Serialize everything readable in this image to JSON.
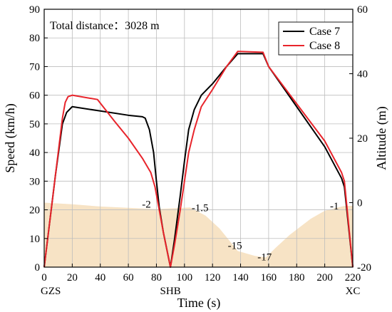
{
  "chart_data": {
    "type": "line",
    "title": "",
    "annotation_text": "Total distance：3028 m",
    "xlabel": "Time (s)",
    "ylabel_left": "Speed (km/h)",
    "ylabel_right": "Altitude (m)",
    "xlim": [
      0,
      220
    ],
    "ylim_left": [
      0,
      90
    ],
    "ylim_right": [
      -20,
      60
    ],
    "x_ticks": [
      0,
      20,
      40,
      60,
      80,
      100,
      120,
      140,
      160,
      180,
      200,
      220
    ],
    "y_ticks_left": [
      0,
      10,
      20,
      30,
      40,
      50,
      60,
      70,
      80,
      90
    ],
    "y_ticks_right": [
      -20,
      0,
      20,
      40,
      60
    ],
    "grid": true,
    "legend_position": "top-right",
    "stations": [
      {
        "label": "GZS",
        "x": 0
      },
      {
        "label": "SHB",
        "x": 90
      },
      {
        "label": "XC",
        "x": 220
      }
    ],
    "series": [
      {
        "name": "Case 7",
        "color": "#000000",
        "axis": "left",
        "x": [
          0,
          8,
          13,
          16,
          20,
          40,
          60,
          70,
          72,
          75,
          78,
          80,
          82,
          85,
          90,
          93,
          97,
          100,
          103,
          107,
          112,
          120,
          130,
          138,
          156,
          160,
          180,
          200,
          212,
          214,
          220
        ],
        "y": [
          0,
          32,
          50,
          54,
          56,
          54.5,
          53,
          52.5,
          52,
          48,
          40,
          30,
          21,
          12,
          0,
          10,
          25,
          37,
          48,
          55,
          60,
          64,
          70,
          74.5,
          74.5,
          70,
          56,
          42,
          31,
          28,
          0
        ]
      },
      {
        "name": "Case 8",
        "color": "#e8242b",
        "axis": "left",
        "x": [
          0,
          8,
          13,
          15,
          17,
          20,
          38,
          50,
          60,
          70,
          76,
          79,
          82,
          85,
          90,
          93,
          97,
          100,
          103,
          107,
          112,
          120,
          130,
          138,
          156,
          160,
          180,
          200,
          212,
          214,
          220
        ],
        "y": [
          0,
          32,
          52,
          57.5,
          59.5,
          60,
          58.5,
          51,
          45,
          38,
          33,
          28,
          20,
          12,
          0,
          8,
          20,
          30,
          40,
          48,
          56,
          62,
          70,
          75.3,
          75,
          70,
          57,
          44,
          33,
          30,
          0
        ]
      },
      {
        "name": "Altitude profile",
        "color": "#f7e3c5",
        "axis": "right",
        "type": "area",
        "x": [
          0,
          20,
          40,
          60,
          79,
          90,
          104,
          115,
          125,
          138,
          150,
          158,
          165,
          175,
          190,
          200,
          214,
          220
        ],
        "y": [
          0,
          -0.5,
          -1.2,
          -1.6,
          -2,
          -1.8,
          -1.5,
          -4,
          -8,
          -15,
          -16.5,
          -17,
          -14,
          -10,
          -5,
          -2.5,
          -1,
          -1
        ]
      }
    ],
    "altitude_labels": [
      {
        "text": "-2",
        "x": 79,
        "y": -2
      },
      {
        "text": "-1.5",
        "x": 104,
        "y": -1.5
      },
      {
        "text": "-15",
        "x": 138,
        "y": -15
      },
      {
        "text": "-17",
        "x": 150,
        "y": -17
      },
      {
        "text": "-1",
        "x": 214,
        "y": -1
      }
    ]
  }
}
